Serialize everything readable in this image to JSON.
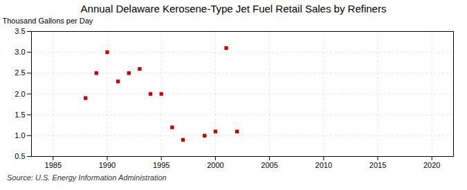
{
  "chart_data": {
    "type": "scatter",
    "title": "Annual Delaware Kerosene-Type Jet Fuel Retail Sales by Refiners",
    "ylabel": "Thousand Gallons per Day",
    "source": "Source: U.S. Energy Information Administration",
    "x": [
      1988,
      1989,
      1990,
      1991,
      1992,
      1993,
      1994,
      1995,
      1996,
      1997,
      1999,
      2000,
      2001,
      2002
    ],
    "values": [
      1.9,
      2.5,
      3.0,
      2.3,
      2.5,
      2.6,
      2.0,
      2.0,
      1.2,
      0.9,
      1.0,
      1.1,
      3.1,
      1.1
    ],
    "color": "#cc0000",
    "marker": "square",
    "xlim": [
      1983,
      2022
    ],
    "xticks": [
      1985,
      1990,
      1995,
      2000,
      2005,
      2010,
      2015,
      2020
    ],
    "ylim": [
      0.5,
      3.5
    ],
    "yticks": [
      0.5,
      {
        "value": 1,
        "label": "1.0"
      },
      1.5,
      {
        "value": 2,
        "label": "2.0"
      },
      2.5,
      {
        "value": 3,
        "label": "3.0"
      },
      3.5
    ],
    "grid": true
  }
}
